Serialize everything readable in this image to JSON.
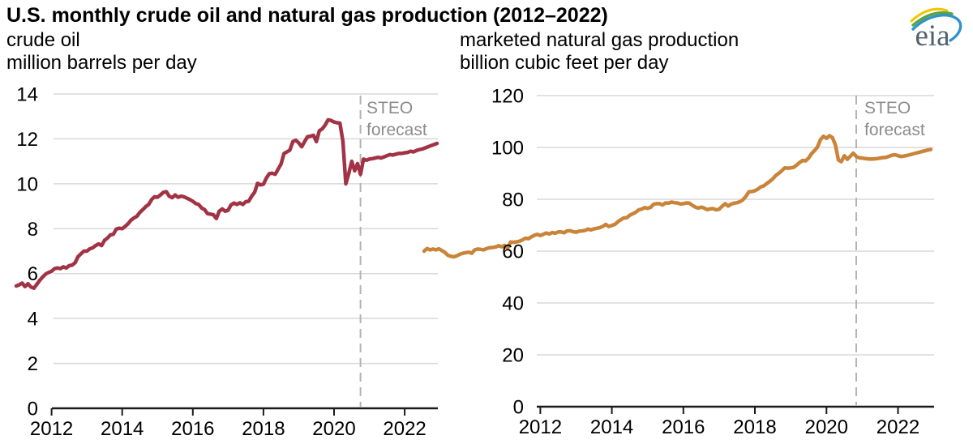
{
  "header": {
    "title": "U.S. monthly crude oil and natural gas production (2012–2022)",
    "logo_text": "eia"
  },
  "colors": {
    "crude_line": "#A23345",
    "gas_line": "#C9843A",
    "gridline": "#D9D9D9",
    "axis": "#1A1A1A",
    "forecast_divider": "#B3B3B3",
    "annotation_text": "#8C8C8C",
    "logo_text": "#53626E",
    "logo_swoosh_yellow": "#F5C400",
    "logo_swoosh_green": "#5BA53C",
    "logo_swoosh_blue": "#2E93C9"
  },
  "chart_data": [
    {
      "type": "line",
      "title": "crude oil",
      "ylabel": "million barrels per day",
      "freq": "monthly",
      "start": "2011-01",
      "end": "2022-12",
      "ylim": [
        0,
        14
      ],
      "y_ticks": [
        0,
        2,
        4,
        6,
        8,
        10,
        12,
        14
      ],
      "x_tick_years": [
        2012,
        2014,
        2016,
        2018,
        2020,
        2022
      ],
      "grid": "horizontal",
      "legend": "none",
      "forecast_start": "2020-10",
      "annotation_lines": [
        "STEO",
        "forecast"
      ],
      "series": [
        {
          "name": "U.S. crude oil production",
          "color": "#A23345",
          "values": [
            5.45,
            5.5,
            5.58,
            5.42,
            5.55,
            5.4,
            5.35,
            5.52,
            5.7,
            5.85,
            5.98,
            6.05,
            6.1,
            6.22,
            6.25,
            6.22,
            6.3,
            6.25,
            6.35,
            6.38,
            6.48,
            6.75,
            6.88,
            7.0,
            7.0,
            7.1,
            7.15,
            7.25,
            7.32,
            7.25,
            7.48,
            7.58,
            7.72,
            7.75,
            7.98,
            8.02,
            8.0,
            8.1,
            8.22,
            8.38,
            8.48,
            8.55,
            8.72,
            8.85,
            8.98,
            9.08,
            9.3,
            9.42,
            9.4,
            9.5,
            9.62,
            9.65,
            9.45,
            9.38,
            9.5,
            9.4,
            9.45,
            9.42,
            9.36,
            9.3,
            9.22,
            9.12,
            9.08,
            8.92,
            8.85,
            8.67,
            8.65,
            8.62,
            8.45,
            8.78,
            8.88,
            8.78,
            8.82,
            9.06,
            9.14,
            9.08,
            9.15,
            9.08,
            9.2,
            9.22,
            9.45,
            9.62,
            10.02,
            9.95,
            9.98,
            10.25,
            10.45,
            10.47,
            10.42,
            10.65,
            10.88,
            11.35,
            11.42,
            11.5,
            11.88,
            11.94,
            11.82,
            11.65,
            11.88,
            12.1,
            12.12,
            12.16,
            11.88,
            12.36,
            12.45,
            12.62,
            12.85,
            12.82,
            12.75,
            12.72,
            12.7,
            11.9,
            10.0,
            10.45,
            11.0,
            10.58,
            10.9,
            10.42,
            11.1,
            11.05,
            11.1,
            11.12,
            11.15,
            11.18,
            11.15,
            11.2,
            11.25,
            11.3,
            11.28,
            11.32,
            11.35,
            11.35,
            11.38,
            11.4,
            11.45,
            11.42,
            11.48,
            11.52,
            11.55,
            11.6,
            11.65,
            11.7,
            11.75,
            11.8
          ]
        }
      ]
    },
    {
      "type": "line",
      "title": "marketed natural gas production",
      "ylabel": "billion cubic feet per day",
      "freq": "monthly",
      "start": "2008-10",
      "end": "2022-12",
      "ylim": [
        0,
        120
      ],
      "y_ticks": [
        0,
        20,
        40,
        60,
        80,
        100,
        120
      ],
      "x_tick_years": [
        2012,
        2014,
        2016,
        2018,
        2020,
        2022
      ],
      "grid": "horizontal",
      "legend": "none",
      "forecast_start": "2020-11",
      "annotation_lines": [
        "STEO",
        "forecast"
      ],
      "series": [
        {
          "name": "U.S. marketed natural gas production",
          "color": "#C9843A",
          "values": [
            60.0,
            61.0,
            60.5,
            60.8,
            60.5,
            60.9,
            60.2,
            59.5,
            58.4,
            58.0,
            57.8,
            58.2,
            58.8,
            59.2,
            59.4,
            59.6,
            59.2,
            60.5,
            60.8,
            60.7,
            60.5,
            61.0,
            61.3,
            61.4,
            61.6,
            62.1,
            61.7,
            62.2,
            61.0,
            63.5,
            63.4,
            63.6,
            63.8,
            64.3,
            65.0,
            64.8,
            65.5,
            66.1,
            66.5,
            66.0,
            66.5,
            67.0,
            66.6,
            67.2,
            66.9,
            67.4,
            67.4,
            67.1,
            67.8,
            67.9,
            67.5,
            67.3,
            67.7,
            67.8,
            68.0,
            68.5,
            68.2,
            68.6,
            68.8,
            69.1,
            69.6,
            70.3,
            69.5,
            69.9,
            70.3,
            71.3,
            72.1,
            72.8,
            72.9,
            73.8,
            74.4,
            75.0,
            75.9,
            76.2,
            76.8,
            76.5,
            76.9,
            78.1,
            78.3,
            78.3,
            77.8,
            78.6,
            78.5,
            78.9,
            78.7,
            78.6,
            78.2,
            78.3,
            78.6,
            78.5,
            77.7,
            77.0,
            76.6,
            77.0,
            76.6,
            76.0,
            76.3,
            76.4,
            75.9,
            76.2,
            77.3,
            78.3,
            77.4,
            78.1,
            78.5,
            78.7,
            79.1,
            79.8,
            81.2,
            82.9,
            83.0,
            83.3,
            83.9,
            84.8,
            85.2,
            86.1,
            86.9,
            87.9,
            89.2,
            90.0,
            91.0,
            92.1,
            92.0,
            92.1,
            92.3,
            93.2,
            94.2,
            95.0,
            94.8,
            95.9,
            97.6,
            98.8,
            100.2,
            103.0,
            104.3,
            103.5,
            104.5,
            103.8,
            101.0,
            95.2,
            94.5,
            96.8,
            95.4,
            96.6,
            97.8,
            96.5,
            96.0,
            95.9,
            95.7,
            95.6,
            95.5,
            95.6,
            95.7,
            95.9,
            96.1,
            96.2,
            96.6,
            97.0,
            97.2,
            96.8,
            96.5,
            96.7,
            96.9,
            97.2,
            97.5,
            97.8,
            98.1,
            98.4,
            98.7,
            99.0,
            99.2
          ]
        }
      ]
    }
  ]
}
